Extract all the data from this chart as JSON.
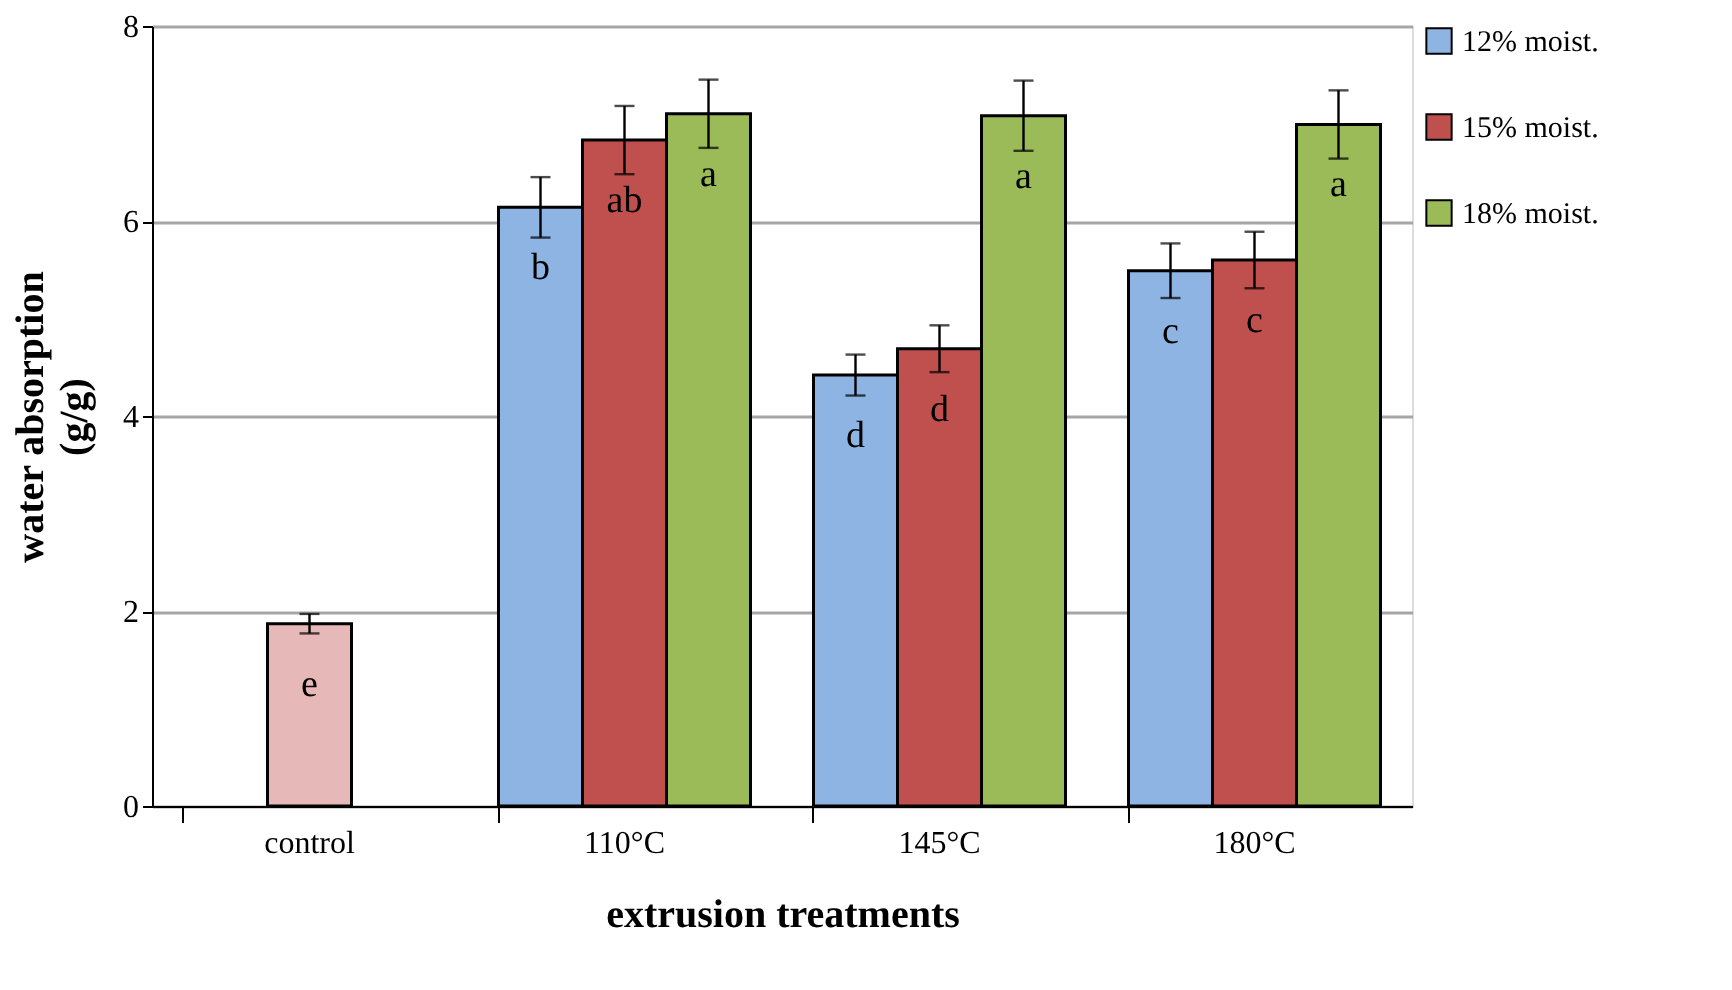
{
  "chart_data": {
    "type": "bar",
    "xlabel": "extrusion treatments",
    "ylabel": "water absorption (g/g)",
    "categories": [
      "control",
      "110°C",
      "145°C",
      "180°C"
    ],
    "series": [
      {
        "name": "12% moist.",
        "color": "#8eb4e3",
        "values": [
          null,
          6.14,
          4.42,
          5.49
        ],
        "errors": [
          null,
          0.31,
          0.21,
          0.28
        ],
        "value_labels": [
          null,
          "b",
          "d",
          "c"
        ]
      },
      {
        "name": "15% moist.",
        "color": "#c0504d",
        "colors": [
          "#e6b9b8",
          "#c0504d",
          "#c0504d",
          "#c0504d"
        ],
        "values": [
          1.87,
          6.83,
          4.69,
          5.6
        ],
        "errors": [
          0.1,
          0.35,
          0.24,
          0.29
        ],
        "value_labels": [
          "e",
          "ab",
          "d",
          "c"
        ]
      },
      {
        "name": "18% moist.",
        "color": "#9bbb59",
        "values": [
          null,
          7.1,
          7.08,
          6.99
        ],
        "errors": [
          null,
          0.35,
          0.36,
          0.35
        ],
        "value_labels": [
          null,
          "a",
          "a",
          "a"
        ]
      }
    ],
    "ylim": [
      0,
      8
    ],
    "yticks": [
      0,
      2,
      4,
      6,
      8
    ],
    "grid": "y",
    "legend": "right"
  }
}
